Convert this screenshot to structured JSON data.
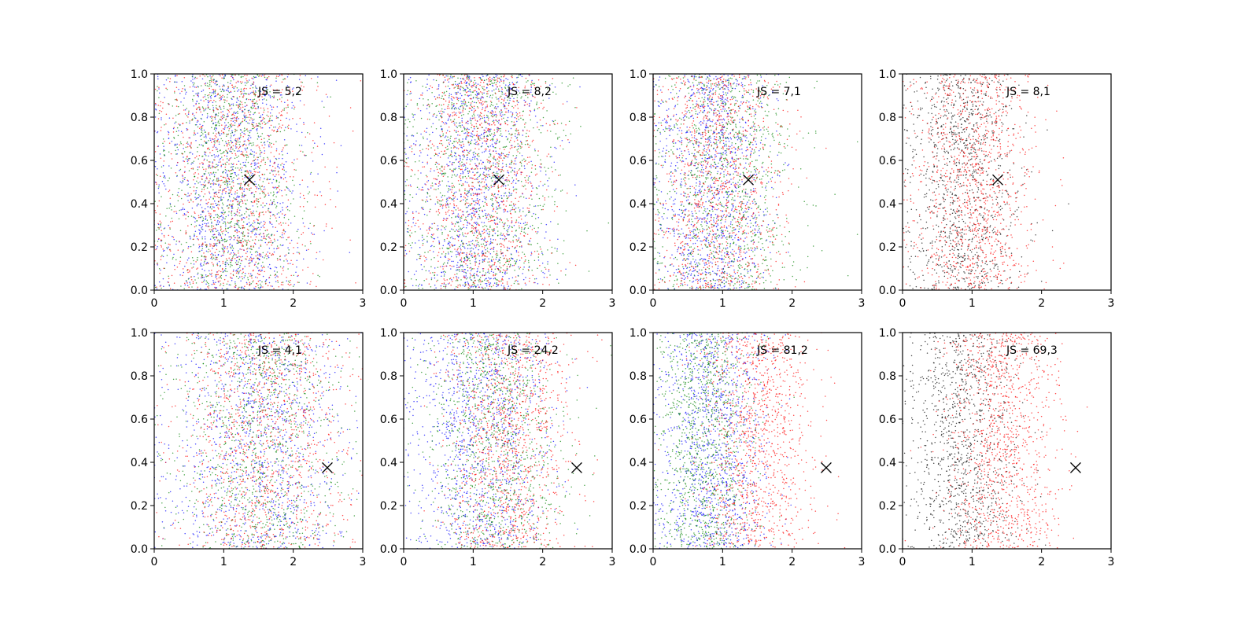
{
  "chart_data": [
    {
      "type": "scatter",
      "annotation": "JS = 5,2",
      "xlim": [
        0,
        3
      ],
      "ylim": [
        0,
        1
      ],
      "xticks": [
        "0",
        "1",
        "2",
        "3"
      ],
      "yticks": [
        "0.0",
        "0.2",
        "0.4",
        "0.6",
        "0.8",
        "1.0"
      ],
      "marker": {
        "symbol": "x",
        "x": 1.37,
        "y": 0.51
      },
      "series": [
        {
          "color": "#0000ff",
          "x_mean": 1.1,
          "x_sd": 0.55
        },
        {
          "color": "#008000",
          "x_mean": 1.1,
          "x_sd": 0.5
        },
        {
          "color": "#ff0000",
          "x_mean": 1.15,
          "x_sd": 0.6
        }
      ]
    },
    {
      "type": "scatter",
      "annotation": "JS = 8,2",
      "xlim": [
        0,
        3
      ],
      "ylim": [
        0,
        1
      ],
      "xticks": [
        "0",
        "1",
        "2",
        "3"
      ],
      "yticks": [
        "0.0",
        "0.2",
        "0.4",
        "0.6",
        "0.8",
        "1.0"
      ],
      "marker": {
        "symbol": "x",
        "x": 1.37,
        "y": 0.51
      },
      "series": [
        {
          "color": "#0000ff",
          "x_mean": 1.05,
          "x_sd": 0.5
        },
        {
          "color": "#008000",
          "x_mean": 1.15,
          "x_sd": 0.55
        },
        {
          "color": "#ff0000",
          "x_mean": 1.1,
          "x_sd": 0.5
        }
      ]
    },
    {
      "type": "scatter",
      "annotation": "JS = 7,1",
      "xlim": [
        0,
        3
      ],
      "ylim": [
        0,
        1
      ],
      "xticks": [
        "0",
        "1",
        "2",
        "3"
      ],
      "yticks": [
        "0.0",
        "0.2",
        "0.4",
        "0.6",
        "0.8",
        "1.0"
      ],
      "marker": {
        "symbol": "x",
        "x": 1.37,
        "y": 0.51
      },
      "series": [
        {
          "color": "#0000ff",
          "x_mean": 0.85,
          "x_sd": 0.4
        },
        {
          "color": "#008000",
          "x_mean": 1.05,
          "x_sd": 0.5
        },
        {
          "color": "#ff0000",
          "x_mean": 0.95,
          "x_sd": 0.45
        }
      ]
    },
    {
      "type": "scatter",
      "annotation": "JS = 8,1",
      "xlim": [
        0,
        3
      ],
      "ylim": [
        0,
        1
      ],
      "xticks": [
        "0",
        "1",
        "2",
        "3"
      ],
      "yticks": [
        "0.0",
        "0.2",
        "0.4",
        "0.6",
        "0.8",
        "1.0"
      ],
      "marker": {
        "symbol": "x",
        "x": 1.37,
        "y": 0.51
      },
      "series": [
        {
          "color": "#000000",
          "x_mean": 0.85,
          "x_sd": 0.4
        },
        {
          "color": "#ff0000",
          "x_mean": 1.05,
          "x_sd": 0.45
        }
      ]
    },
    {
      "type": "scatter",
      "annotation": "JS = 4,1",
      "xlim": [
        0,
        3
      ],
      "ylim": [
        0,
        1
      ],
      "xticks": [
        "0",
        "1",
        "2",
        "3"
      ],
      "yticks": [
        "0.0",
        "0.2",
        "0.4",
        "0.6",
        "0.8",
        "1.0"
      ],
      "marker": {
        "symbol": "x",
        "x": 2.49,
        "y": 0.375
      },
      "series": [
        {
          "color": "#0000ff",
          "x_mean": 1.45,
          "x_sd": 0.65
        },
        {
          "color": "#008000",
          "x_mean": 1.5,
          "x_sd": 0.6
        },
        {
          "color": "#ff0000",
          "x_mean": 1.55,
          "x_sd": 0.6
        }
      ]
    },
    {
      "type": "scatter",
      "annotation": "JS = 24,2",
      "xlim": [
        0,
        3
      ],
      "ylim": [
        0,
        1
      ],
      "xticks": [
        "0",
        "1",
        "2",
        "3"
      ],
      "yticks": [
        "0.0",
        "0.2",
        "0.4",
        "0.6",
        "0.8",
        "1.0"
      ],
      "marker": {
        "symbol": "x",
        "x": 2.49,
        "y": 0.375
      },
      "series": [
        {
          "color": "#0000ff",
          "x_mean": 1.1,
          "x_sd": 0.5
        },
        {
          "color": "#008000",
          "x_mean": 1.3,
          "x_sd": 0.5
        },
        {
          "color": "#ff0000",
          "x_mean": 1.5,
          "x_sd": 0.45
        }
      ]
    },
    {
      "type": "scatter",
      "annotation": "JS = 81,2",
      "xlim": [
        0,
        3
      ],
      "ylim": [
        0,
        1
      ],
      "xticks": [
        "0",
        "1",
        "2",
        "3"
      ],
      "yticks": [
        "0.0",
        "0.2",
        "0.4",
        "0.6",
        "0.8",
        "1.0"
      ],
      "marker": {
        "symbol": "x",
        "x": 2.49,
        "y": 0.375
      },
      "series": [
        {
          "color": "#0000ff",
          "x_mean": 0.85,
          "x_sd": 0.4
        },
        {
          "color": "#008000",
          "x_mean": 0.75,
          "x_sd": 0.35
        },
        {
          "color": "#ff0000",
          "x_mean": 1.5,
          "x_sd": 0.4
        }
      ]
    },
    {
      "type": "scatter",
      "annotation": "JS = 69,3",
      "xlim": [
        0,
        3
      ],
      "ylim": [
        0,
        1
      ],
      "xticks": [
        "0",
        "1",
        "2",
        "3"
      ],
      "yticks": [
        "0.0",
        "0.2",
        "0.4",
        "0.6",
        "0.8",
        "1.0"
      ],
      "marker": {
        "symbol": "x",
        "x": 2.49,
        "y": 0.375
      },
      "series": [
        {
          "color": "#000000",
          "x_mean": 0.85,
          "x_sd": 0.4
        },
        {
          "color": "#ff0000",
          "x_mean": 1.45,
          "x_sd": 0.4
        }
      ]
    }
  ]
}
